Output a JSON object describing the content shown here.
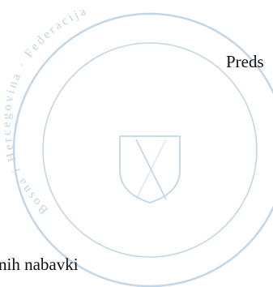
{
  "document": {
    "fragment_top_right": "Preds",
    "fragment_bottom_left": "nih nabavki"
  },
  "stamp": {
    "text_outer": "Bosna i Hercegovina · Federacija",
    "color": "#b9cfe2",
    "emblem": "coat-of-arms-shield"
  }
}
